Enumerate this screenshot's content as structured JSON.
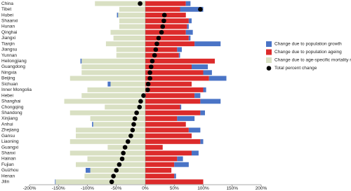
{
  "chart_data": {
    "type": "diverging_stacked_bar",
    "categories": [
      "China",
      "Tibet",
      "Hubei",
      "Shaanxi",
      "Hunan",
      "Qinghai",
      "Jiangxi",
      "Tianjin",
      "Jiangsu",
      "Yunnan",
      "Heilongjiang",
      "Guangdong",
      "Ningxia",
      "Beijing",
      "Sichuan",
      "Inner Mongolia",
      "Hebei",
      "Shanghai",
      "Chongqing",
      "Shandong",
      "Xinjiang",
      "Anhui",
      "Zhejiang",
      "Gansu",
      "Liaoning",
      "Guangxi",
      "Shanxi",
      "Hainan",
      "Fujian",
      "Guizhou",
      "Henan",
      "Jilin"
    ],
    "series": [
      {
        "name": "Change due to population growth",
        "color": "#4a74c6",
        "values": [
          8,
          40,
          -2,
          5,
          3,
          12,
          3,
          45,
          8,
          2,
          -2,
          28,
          15,
          30,
          -5,
          5,
          10,
          35,
          2,
          8,
          30,
          -2,
          20,
          0,
          5,
          0,
          12,
          10,
          25,
          -8,
          3,
          -1
        ]
      },
      {
        "name": "Change due to population ageing",
        "color": "#dc2b2b",
        "values": [
          70,
          60,
          70,
          75,
          72,
          70,
          75,
          85,
          55,
          58,
          120,
          80,
          100,
          110,
          80,
          100,
          85,
          95,
          60,
          95,
          55,
          70,
          75,
          80,
          95,
          30,
          80,
          55,
          50,
          45,
          50,
          100
        ]
      },
      {
        "name": "Change due to age-specific mortality rate",
        "color": "#d9e0c3",
        "values": [
          -87,
          -45,
          -47,
          -45,
          -45,
          -60,
          -55,
          -68,
          -50,
          -50,
          -110,
          -110,
          -110,
          -130,
          -60,
          -100,
          -110,
          -140,
          -70,
          -130,
          -95,
          -90,
          -120,
          -120,
          -130,
          -65,
          -130,
          -100,
          -120,
          -95,
          -105,
          -155
        ]
      },
      {
        "name": "Total percent change",
        "color": "#000000",
        "values": [
          -9,
          95,
          33,
          32,
          30,
          28,
          23,
          20,
          18,
          16,
          12,
          10,
          8,
          8,
          5,
          4,
          -3,
          -8,
          -10,
          -15,
          -18,
          -20,
          -22,
          -25,
          -30,
          -35,
          -38,
          -40,
          -45,
          -50,
          -55,
          -58
        ]
      }
    ],
    "xlim": [
      -200,
      200
    ],
    "xticks": [
      {
        "value": -200,
        "label": "-200%"
      },
      {
        "value": -150,
        "label": "-150%"
      },
      {
        "value": -100,
        "label": "-100%"
      },
      {
        "value": -50,
        "label": "-50%"
      },
      {
        "value": 0,
        "label": "0%"
      },
      {
        "value": 50,
        "label": "50%"
      },
      {
        "value": 100,
        "label": "100%"
      },
      {
        "value": 150,
        "label": "150%"
      },
      {
        "value": 200,
        "label": "200%"
      }
    ]
  }
}
